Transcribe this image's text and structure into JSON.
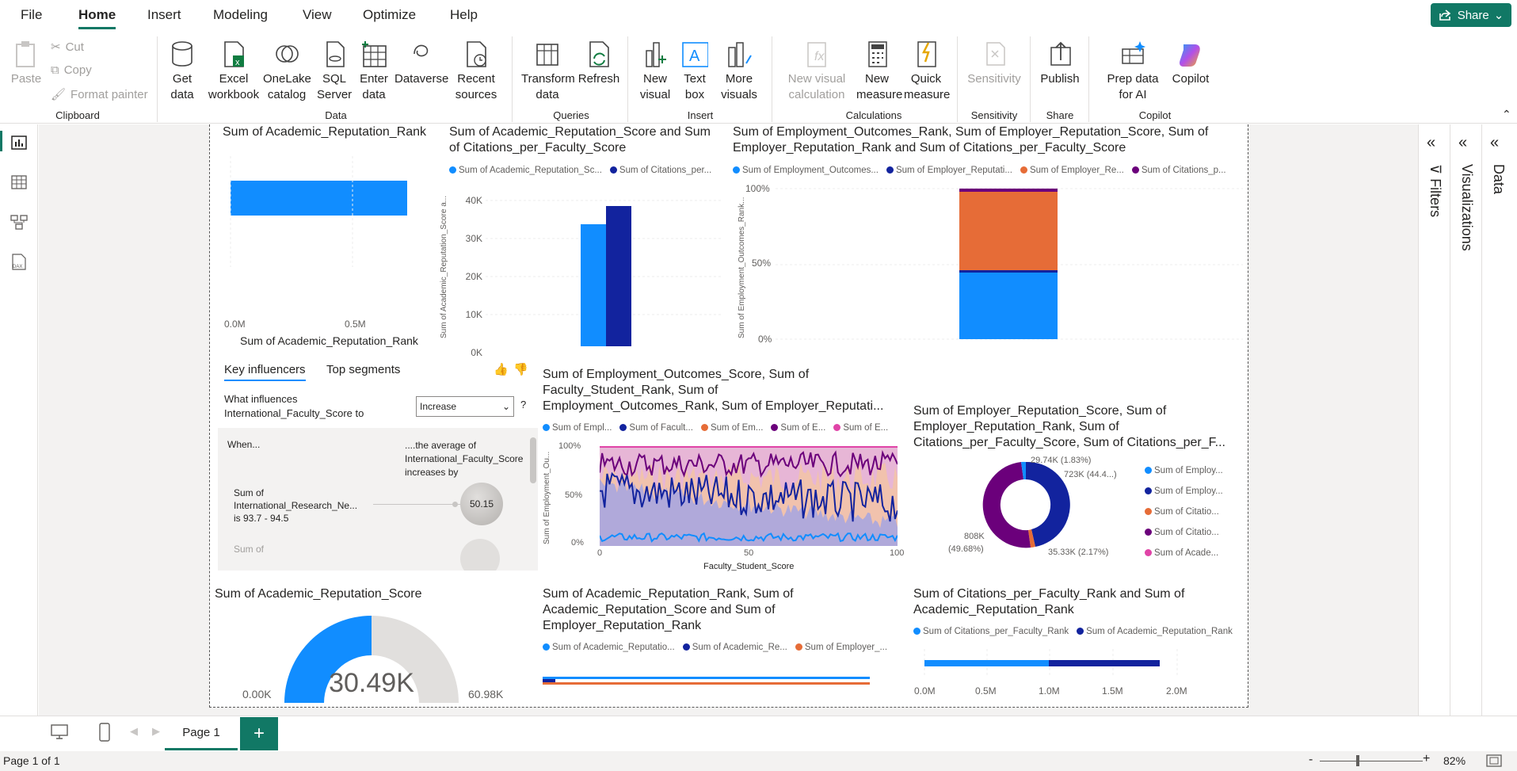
{
  "menu": {
    "file": "File",
    "home": "Home",
    "insert": "Insert",
    "modeling": "Modeling",
    "view": "View",
    "optimize": "Optimize",
    "help": "Help",
    "share": "Share"
  },
  "ribbon": {
    "paste": "Paste",
    "cut": "Cut",
    "copy": "Copy",
    "format_painter": "Format painter",
    "clipboard": "Clipboard",
    "get_data": "Get data",
    "excel": "Excel workbook",
    "onelake": "OneLake catalog",
    "sql": "SQL Server",
    "enter_data": "Enter data",
    "dataverse": "Dataverse",
    "recent": "Recent sources",
    "data": "Data",
    "transform": "Transform data",
    "refresh": "Refresh",
    "queries": "Queries",
    "new_visual": "New visual",
    "text_box": "Text box",
    "more_visuals": "More visuals",
    "insert": "Insert",
    "new_visual_calc": "New visual calculation",
    "new_measure": "New measure",
    "quick_measure": "Quick measure",
    "calculations": "Calculations",
    "sensitivity_btn": "Sensitivity",
    "sensitivity": "Sensitivity",
    "publish": "Publish",
    "share_group": "Share",
    "prep": "Prep data for AI",
    "copilot_btn": "Copilot",
    "copilot": "Copilot"
  },
  "panes": {
    "filters": "Filters",
    "visualizations": "Visualizations",
    "data": "Data"
  },
  "visuals": {
    "v1": {
      "title": "Sum of Academic_Reputation_Rank",
      "xticks": [
        "0.0M",
        "0.5M"
      ],
      "xlabel": "Sum of Academic_Reputation_Rank"
    },
    "v2": {
      "title1": "Sum of Academic_Reputation_Score and Sum",
      "title2": "of Citations_per_Faculty_Score",
      "leg": [
        "Sum of Academic_Reputation_Sc...",
        "Sum of Citations_per..."
      ],
      "ylabel": "Sum of Academic_Reputation_Score a...",
      "yticks": [
        "40K",
        "30K",
        "20K",
        "10K",
        "0K"
      ]
    },
    "v3": {
      "title1": "Sum of Employment_Outcomes_Rank, Sum of Employer_Reputation_Score, Sum of",
      "title2": "Employer_Reputation_Rank and Sum of Citations_per_Faculty_Score",
      "leg": [
        "Sum of Employment_Outcomes...",
        "Sum of Employer_Reputati...",
        "Sum of Employer_Re...",
        "Sum of Citations_p..."
      ],
      "ylabel": "Sum of Employment_Outcomes_Rank...",
      "yticks": [
        "100%",
        "50%",
        "0%"
      ]
    },
    "ki": {
      "tab1": "Key influencers",
      "tab2": "Top segments",
      "question1": "What influences",
      "question2": "International_Faculty_Score to",
      "dropdown": "Increase",
      "help": "?",
      "when": "When...",
      "avg1": "....the average of",
      "avg2": "International_Faculty_Score",
      "avg3": "increases by",
      "f1": "Sum of",
      "f2": "International_Research_Ne...",
      "f3": "is 93.7 - 94.5",
      "bubble": "50.15",
      "f4": "Sum of"
    },
    "v5": {
      "title1": "Sum of Employment_Outcomes_Score, Sum of",
      "title2": "Faculty_Student_Rank, Sum of",
      "title3": "Employment_Outcomes_Rank, Sum of Employer_Reputati...",
      "leg": [
        "Sum of Empl...",
        "Sum of Facult...",
        "Sum of Em...",
        "Sum of E...",
        "Sum of E..."
      ],
      "ylabel": "Sum of Employment_Ou...",
      "yticks": [
        "100%",
        "50%",
        "0%"
      ],
      "xticks": [
        "0",
        "50",
        "100"
      ],
      "xlabel": "Faculty_Student_Score"
    },
    "v6": {
      "title1": "Sum of Employer_Reputation_Score, Sum of",
      "title2": "Employer_Reputation_Rank, Sum of",
      "title3": "Citations_per_Faculty_Score, Sum of Citations_per_F...",
      "leg": [
        "Sum of Employ...",
        "Sum of Employ...",
        "Sum of Citatio...",
        "Sum of Citatio...",
        "Sum of Acade..."
      ],
      "labels": [
        "29.74K (1.83%)",
        "723K (44.4...)",
        "808K",
        "(49.68%)",
        "35.33K (2.17%)"
      ]
    },
    "v7": {
      "title": "Sum of Academic_Reputation_Score",
      "value": "30.49K",
      "min": "0.00K",
      "max": "60.98K"
    },
    "v8": {
      "title1": "Sum of Academic_Reputation_Rank, Sum of",
      "title2": "Academic_Reputation_Score and Sum of",
      "title3": "Employer_Reputation_Rank",
      "leg": [
        "Sum of Academic_Reputatio...",
        "Sum of Academic_Re...",
        "Sum of Employer_..."
      ]
    },
    "v9": {
      "title1": "Sum of Citations_per_Faculty_Rank and Sum of",
      "title2": "Academic_Reputation_Rank",
      "leg": [
        "Sum of Citations_per_Faculty_Rank",
        "Sum of Academic_Reputation_Rank"
      ],
      "xticks": [
        "0.0M",
        "0.5M",
        "1.0M",
        "1.5M",
        "2.0M"
      ]
    }
  },
  "bottom": {
    "page1": "Page 1",
    "status": "Page 1 of 1",
    "zoom": "82%"
  },
  "colors": {
    "accent": "#117865",
    "blue": "#118dff",
    "navy": "#12239e",
    "orange": "#e66c37",
    "purple": "#6b007b",
    "pink": "#e044a7"
  }
}
